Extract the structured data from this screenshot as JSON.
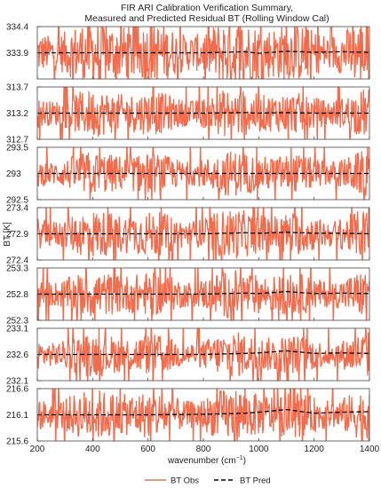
{
  "chart_data": {
    "type": "line",
    "title": "FIR ARI Calibration Verification Summary,",
    "subtitle": "Measured and Predicted Residual BT (Rolling Window Cal)",
    "xlabel": "wavenumber (cm",
    "xlabel_sup": "−1",
    "xlabel_close": ")",
    "ylabel": "BT [K]",
    "xlim": [
      200,
      1400
    ],
    "xticks": [
      200,
      400,
      600,
      800,
      1000,
      1200,
      1400
    ],
    "xtick_labels": [
      "200",
      "400",
      "600",
      "800",
      "1000",
      "1200",
      "1400"
    ],
    "legend": {
      "placement": "bottom-center",
      "entries": [
        {
          "label": "BT Obs",
          "color": "#c0845a",
          "style": "solid"
        },
        {
          "label": "BT Pred",
          "color": "#000000",
          "style": "dashed"
        }
      ]
    },
    "colors": {
      "obs_fill": "#f26b4c",
      "obs_line": "#c0845a",
      "pred": "#000000"
    },
    "panels": [
      {
        "yticks": [
          334.4,
          333.9
        ],
        "ytick_labels": [
          "334.4",
          "333.9"
        ],
        "ylim": [
          333.4,
          334.4
        ],
        "pred": {
          "x": [
            200,
            400,
            600,
            800,
            950,
            1000,
            1100,
            1200,
            1300,
            1400
          ],
          "y": [
            333.9,
            333.9,
            333.9,
            333.9,
            333.92,
            333.89,
            333.93,
            333.91,
            333.92,
            333.91
          ]
        },
        "obs_band": 0.45
      },
      {
        "yticks": [
          313.7,
          313.2,
          312.7
        ],
        "ytick_labels": [
          "313.7",
          "313.2",
          "312.7"
        ],
        "ylim": [
          312.7,
          313.7
        ],
        "pred": {
          "x": [
            200,
            400,
            600,
            800,
            950,
            1000,
            1100,
            1200,
            1300,
            1400
          ],
          "y": [
            313.2,
            313.2,
            313.2,
            313.2,
            313.21,
            313.2,
            313.21,
            313.2,
            313.2,
            313.2
          ]
        },
        "obs_band": 0.32
      },
      {
        "yticks": [
          293.5,
          293,
          292.5
        ],
        "ytick_labels": [
          "293.5",
          "293",
          "292.5"
        ],
        "ylim": [
          292.5,
          293.5
        ],
        "pred": {
          "x": [
            200,
            400,
            600,
            800,
            950,
            1000,
            1100,
            1200,
            1300,
            1400
          ],
          "y": [
            293,
            293,
            293,
            293,
            293,
            293,
            293,
            293,
            293,
            293
          ]
        },
        "obs_band": 0.3
      },
      {
        "yticks": [
          273.4,
          272.9,
          272.4
        ],
        "ytick_labels": [
          "273.4",
          "272.9",
          "272.4"
        ],
        "ylim": [
          272.4,
          273.4
        ],
        "pred": {
          "x": [
            200,
            400,
            600,
            800,
            950,
            1000,
            1100,
            1200,
            1300,
            1400
          ],
          "y": [
            272.9,
            272.9,
            272.9,
            272.9,
            272.92,
            272.91,
            272.93,
            272.91,
            272.91,
            272.9
          ]
        },
        "obs_band": 0.33
      },
      {
        "yticks": [
          253.3,
          252.8,
          252.3
        ],
        "ytick_labels": [
          "253.3",
          "252.8",
          "252.3"
        ],
        "ylim": [
          252.3,
          253.3
        ],
        "pred": {
          "x": [
            200,
            400,
            600,
            800,
            950,
            1000,
            1100,
            1200,
            1300,
            1400
          ],
          "y": [
            252.8,
            252.8,
            252.8,
            252.8,
            252.82,
            252.81,
            252.85,
            252.81,
            252.82,
            252.81
          ]
        },
        "obs_band": 0.32
      },
      {
        "yticks": [
          233.1,
          232.6,
          232.1
        ],
        "ytick_labels": [
          "233.1",
          "232.6",
          "232.1"
        ],
        "ylim": [
          232.1,
          233.1
        ],
        "pred": {
          "x": [
            200,
            400,
            600,
            800,
            950,
            1000,
            1100,
            1200,
            1300,
            1400
          ],
          "y": [
            232.6,
            232.6,
            232.6,
            232.6,
            232.62,
            232.63,
            232.67,
            232.62,
            232.63,
            232.62
          ]
        },
        "obs_band": 0.3
      },
      {
        "yticks": [
          216.6,
          216.1,
          215.6
        ],
        "ytick_labels": [
          "216.6",
          "216.1",
          "215.6"
        ],
        "ylim": [
          215.6,
          216.6
        ],
        "pred": {
          "x": [
            200,
            400,
            600,
            800,
            950,
            1000,
            1100,
            1200,
            1300,
            1400
          ],
          "y": [
            216.1,
            216.1,
            216.1,
            216.11,
            216.13,
            216.15,
            216.2,
            216.13,
            216.15,
            216.16
          ]
        },
        "obs_band": 0.35
      }
    ]
  }
}
